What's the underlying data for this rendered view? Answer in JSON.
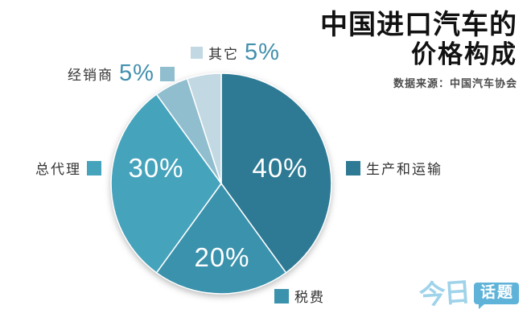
{
  "header": {
    "title_line1": "中国进口汽车的",
    "title_line2": "价格构成",
    "source": "数据来源：中国汽车协会"
  },
  "chart_data": {
    "type": "pie",
    "title": "中国进口汽车的价格构成",
    "source_note": "数据来源：中国汽车协会",
    "start_angle_deg": 0,
    "direction": "clockwise",
    "legend_position": "around",
    "series": [
      {
        "key": "production",
        "label": "生产和运输",
        "value": 40,
        "pct_text": "40%",
        "color": "#2E7A94",
        "pct_inside": true
      },
      {
        "key": "tax",
        "label": "税费",
        "value": 20,
        "pct_text": "20%",
        "color": "#3B92AC",
        "pct_inside": true
      },
      {
        "key": "agent",
        "label": "总代理",
        "value": 30,
        "pct_text": "30%",
        "color": "#46A3BC",
        "pct_inside": true
      },
      {
        "key": "dealer",
        "label": "经销商",
        "value": 5,
        "pct_text": "5%",
        "color": "#90BECE",
        "pct_inside": false
      },
      {
        "key": "other",
        "label": "其它",
        "value": 5,
        "pct_text": "5%",
        "color": "#C2D8E2",
        "pct_inside": false
      }
    ]
  },
  "logo": {
    "part1": "今日",
    "part2": "话题"
  },
  "colors": {
    "pct_accent": "#4390AE",
    "label_text": "#333333",
    "title": "#111111",
    "source": "#4D4D4D",
    "logo_light": "#9FD3EA",
    "logo_badge": "#5FB3D9",
    "slice_border": "#FFFFFF"
  }
}
